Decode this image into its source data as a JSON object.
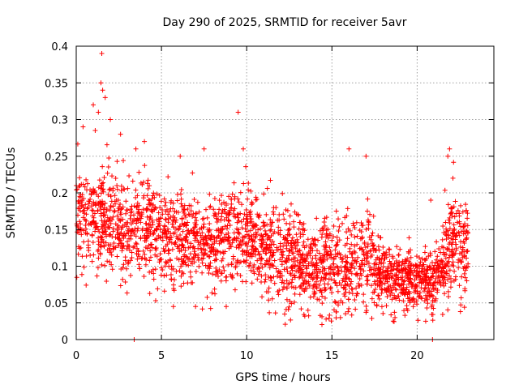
{
  "chart_data": {
    "type": "scatter",
    "title": "Day 290 of 2025, SRMTID for receiver 5avr",
    "xlabel": "GPS time / hours",
    "ylabel": "SRMTID / TECUs",
    "xlim": [
      0,
      24.5
    ],
    "ylim": [
      0,
      0.4
    ],
    "xticks": [
      "0",
      "5",
      "10",
      "15",
      "20"
    ],
    "yticks": [
      "0",
      "0.05",
      "0.1",
      "0.15",
      "0.2",
      "0.25",
      "0.3",
      "0.35",
      "0.4"
    ],
    "grid": true,
    "marker": "+",
    "color": "#ff0000",
    "series": [
      {
        "name": "SRMTID",
        "trend": [
          [
            0,
            0.16
          ],
          [
            1,
            0.17
          ],
          [
            2,
            0.16
          ],
          [
            3,
            0.15
          ],
          [
            4,
            0.15
          ],
          [
            5,
            0.14
          ],
          [
            6,
            0.14
          ],
          [
            7,
            0.14
          ],
          [
            8,
            0.13
          ],
          [
            9,
            0.15
          ],
          [
            10,
            0.14
          ],
          [
            11,
            0.12
          ],
          [
            12,
            0.11
          ],
          [
            13,
            0.11
          ],
          [
            14,
            0.1
          ],
          [
            15,
            0.1
          ],
          [
            16,
            0.1
          ],
          [
            17,
            0.11
          ],
          [
            18,
            0.09
          ],
          [
            19,
            0.08
          ],
          [
            20,
            0.08
          ],
          [
            21,
            0.08
          ],
          [
            22,
            0.13
          ],
          [
            23,
            0.12
          ]
        ],
        "outliers": [
          [
            1.5,
            0.39
          ],
          [
            1.45,
            0.35
          ],
          [
            1.55,
            0.34
          ],
          [
            1.7,
            0.33
          ],
          [
            1.0,
            0.32
          ],
          [
            1.3,
            0.31
          ],
          [
            9.5,
            0.31
          ],
          [
            2.0,
            0.3
          ],
          [
            0.4,
            0.29
          ],
          [
            2.6,
            0.28
          ],
          [
            9.8,
            0.26
          ],
          [
            16.0,
            0.26
          ],
          [
            17.0,
            0.25
          ],
          [
            21.9,
            0.26
          ],
          [
            21.8,
            0.25
          ],
          [
            4.0,
            0.27
          ],
          [
            3.5,
            0.26
          ],
          [
            6.1,
            0.25
          ],
          [
            7.5,
            0.26
          ],
          [
            3.4,
            0.0
          ],
          [
            20.9,
            0.0
          ],
          [
            0.2,
            0.21
          ],
          [
            5.7,
            0.045
          ],
          [
            7.0,
            0.045
          ],
          [
            8.8,
            0.045
          ],
          [
            15.5,
            0.03
          ],
          [
            18.7,
            0.03
          ],
          [
            20.5,
            0.025
          ],
          [
            22.1,
            0.22
          ],
          [
            20.8,
            0.19
          ]
        ]
      }
    ]
  }
}
